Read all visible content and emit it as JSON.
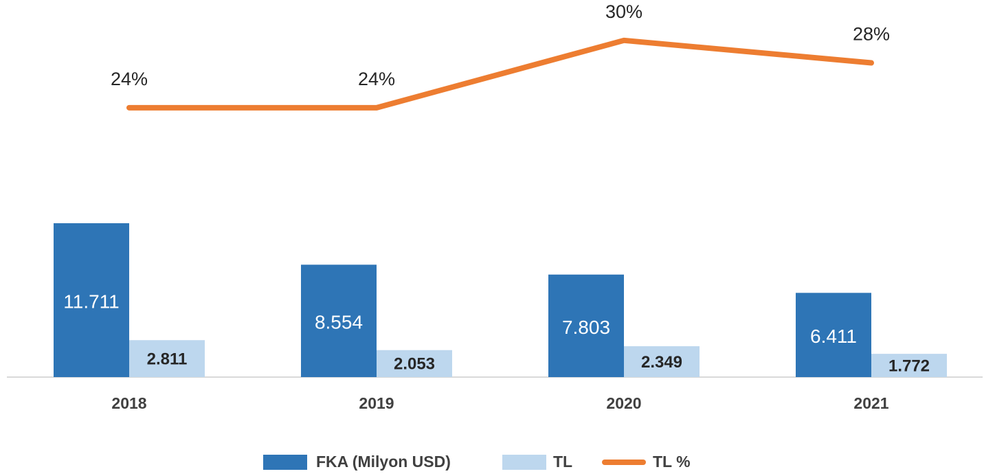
{
  "chart_data": {
    "type": "bar",
    "categories": [
      "2018",
      "2019",
      "2020",
      "2021"
    ],
    "ylim": [
      0,
      28700
    ],
    "y2lim": [
      0,
      33.6
    ],
    "series": [
      {
        "name": "FKA (Milyon USD)",
        "color": "#2e75b6",
        "values": [
          11711,
          8554,
          7803,
          6411
        ],
        "value_labels": [
          "11.711",
          "8.554",
          "7.803",
          "6.411"
        ]
      },
      {
        "name": "TL",
        "color": "#bdd7ee",
        "values": [
          2811,
          2053,
          2349,
          1772
        ],
        "value_labels": [
          "2.811",
          "2.053",
          "2.349",
          "1.772"
        ]
      },
      {
        "name": "TL %",
        "color": "#ed7d31",
        "type": "line",
        "axis": "y2",
        "values": [
          24,
          24,
          30,
          28
        ],
        "value_labels": [
          "24%",
          "24%",
          "30%",
          "28%"
        ]
      }
    ]
  }
}
